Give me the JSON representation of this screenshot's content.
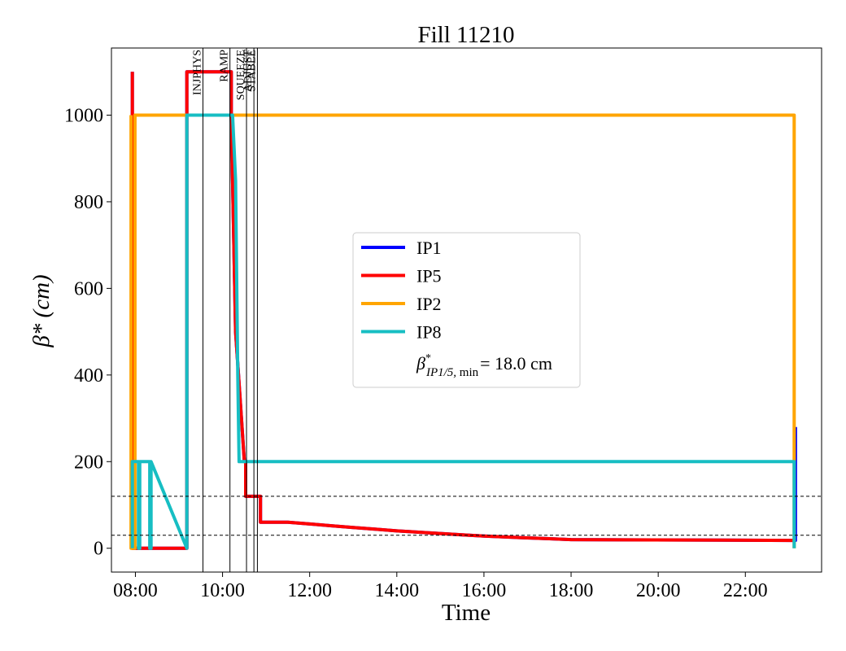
{
  "chart_data": {
    "type": "line",
    "title": "Fill 11210",
    "xlabel": "Time",
    "ylabel": "β* (cm)",
    "x_unit": "hours",
    "xlim": [
      7.45,
      23.75
    ],
    "ylim": [
      -55,
      1155
    ],
    "x_ticks": [
      {
        "value": 8,
        "label": "08:00"
      },
      {
        "value": 10,
        "label": "10:00"
      },
      {
        "value": 12,
        "label": "12:00"
      },
      {
        "value": 14,
        "label": "14:00"
      },
      {
        "value": 16,
        "label": "16:00"
      },
      {
        "value": 18,
        "label": "18:00"
      },
      {
        "value": 20,
        "label": "20:00"
      },
      {
        "value": 22,
        "label": "22:00"
      }
    ],
    "y_ticks": [
      0,
      200,
      400,
      600,
      800,
      1000
    ],
    "grid": false,
    "legend_position": "center",
    "legend_extra_entry": "β*_{IP1/5, min} = 18.0 cm",
    "series": [
      {
        "name": "IP1",
        "color": "#0000ff",
        "x": [
          7.93,
          7.93,
          9.18,
          9.18,
          10.2,
          10.2,
          10.3,
          10.5,
          10.53,
          10.53,
          10.87,
          10.87,
          11.5,
          12.0,
          12.5,
          13.0,
          13.5,
          14.0,
          14.5,
          15.0,
          15.5,
          16.0,
          16.5,
          17.0,
          17.5,
          18.0,
          23.1,
          23.15,
          23.15
        ],
        "y": [
          1100,
          0,
          0,
          1100,
          1100,
          1000,
          500,
          200,
          200,
          120,
          120,
          60,
          60,
          56,
          52,
          48,
          44,
          40,
          37,
          34,
          31,
          28,
          26,
          24,
          22,
          20,
          18,
          18,
          280
        ]
      },
      {
        "name": "IP5",
        "color": "#ff0000",
        "x": [
          7.93,
          7.93,
          9.18,
          9.18,
          10.2,
          10.2,
          10.3,
          10.5,
          10.53,
          10.53,
          10.87,
          10.87,
          11.5,
          12.0,
          12.5,
          13.0,
          13.5,
          14.0,
          14.5,
          15.0,
          15.5,
          16.0,
          16.5,
          17.0,
          17.5,
          18.0,
          23.1
        ],
        "y": [
          1100,
          0,
          0,
          1100,
          1100,
          1000,
          500,
          200,
          200,
          120,
          120,
          60,
          60,
          56,
          52,
          48,
          44,
          40,
          37,
          34,
          31,
          28,
          26,
          24,
          22,
          20,
          18
        ]
      },
      {
        "name": "IP2",
        "color": "#ffa500",
        "x": [
          7.9,
          7.9,
          7.99,
          7.99,
          9.18,
          9.18,
          23.12,
          23.12
        ],
        "y": [
          1000,
          0,
          0,
          1000,
          1000,
          1000,
          1000,
          0
        ]
      },
      {
        "name": "IP8",
        "color": "#17bec3",
        "x": [
          7.93,
          7.93,
          8.07,
          8.07,
          8.1,
          8.1,
          8.33,
          8.33,
          8.36,
          8.36,
          9.18,
          9.18,
          10.2,
          10.23,
          10.3,
          10.35,
          10.38,
          23.12,
          23.12
        ],
        "y": [
          0,
          200,
          200,
          0,
          0,
          200,
          200,
          0,
          0,
          200,
          0,
          1000,
          1000,
          1000,
          850,
          400,
          200,
          200,
          0
        ]
      }
    ],
    "reference_lines": [
      120,
      30
    ],
    "phase_lines": [
      {
        "x": 9.55,
        "label": "INJPHYS"
      },
      {
        "x": 10.17,
        "label": "RAMP"
      },
      {
        "x": 10.55,
        "label": "SQUEEZE"
      },
      {
        "x": 10.72,
        "label": "ADJUST"
      },
      {
        "x": 10.8,
        "label": "STABLE"
      }
    ]
  }
}
